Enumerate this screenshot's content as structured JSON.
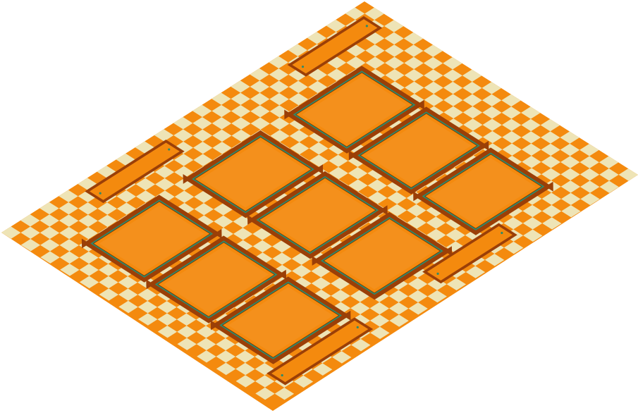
{
  "scene": {
    "view": "isometric",
    "board": {
      "grid_cols": 28,
      "grid_rows": 38,
      "checker_colors": [
        "#f48a0e",
        "#eee4b6"
      ]
    },
    "pads": {
      "layout_rows": 3,
      "layout_cols": 3,
      "count": 9,
      "fill": "#f48a0e",
      "frame_color": "#9b3f07",
      "trim_color": "#2e8a6a"
    },
    "edge_slots": {
      "count": 4,
      "fill": "#f48a0e",
      "frame_color": "#9b3f07",
      "marker_color": "#2e8a6a"
    },
    "colors": {
      "background": "#ffffff",
      "outline": "#7a3004"
    }
  }
}
